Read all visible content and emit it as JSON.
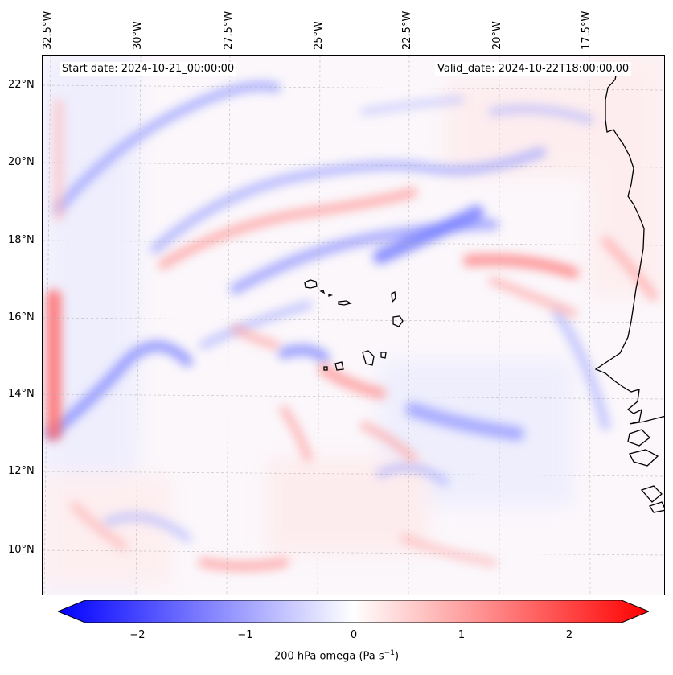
{
  "map": {
    "lon_labels": [
      "32.5°W",
      "30°W",
      "27.5°W",
      "25°W",
      "22.5°W",
      "20°W",
      "17.5°W"
    ],
    "lat_labels": [
      "22°N",
      "20°N",
      "18°N",
      "16°N",
      "14°N",
      "12°N",
      "10°N"
    ],
    "start_date": "Start date: 2024-10-21_00:00:00",
    "valid_date": "Valid_date: 2024-10-22T18:00:00.00",
    "field_colors": {
      "negative": "#0000ff",
      "zero": "#ffffff",
      "positive": "#ff0000",
      "coastline": "#000000"
    }
  },
  "colorbar": {
    "ticks": [
      "−2",
      "−1",
      "0",
      "1",
      "2"
    ],
    "title_prefix": "200 hPa omega (Pa s",
    "title_exp": "−1",
    "title_suffix": ")",
    "range": [
      -2.75,
      2.75
    ]
  }
}
